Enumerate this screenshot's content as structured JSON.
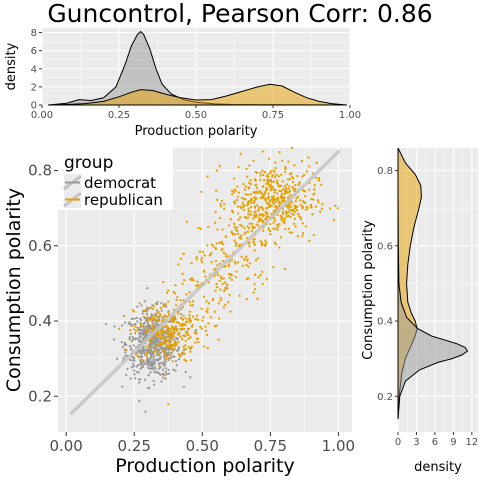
{
  "title": "Guncontrol, Pearson Corr: 0.86",
  "colors": {
    "democrat": "#999999",
    "republican": "#E69F00",
    "panel_bg": "#EBEBEB",
    "grid": "#FFFFFF"
  },
  "chart_data": [
    {
      "type": "area",
      "panel": "top-marginal-density",
      "xlabel": "Production polarity",
      "ylabel": "density",
      "xlim": [
        0,
        1
      ],
      "ylim": [
        0,
        8.5
      ],
      "x_ticks": [
        "0.00",
        "0.25",
        "0.50",
        "0.75",
        "1.00"
      ],
      "y_ticks": [
        "0",
        "2",
        "4",
        "6",
        "8"
      ],
      "series": [
        {
          "name": "democrat",
          "x": [
            0.02,
            0.08,
            0.12,
            0.16,
            0.2,
            0.24,
            0.27,
            0.29,
            0.31,
            0.32,
            0.33,
            0.35,
            0.37,
            0.39,
            0.42,
            0.46,
            0.5,
            0.56,
            0.62,
            0.7,
            0.8,
            0.9,
            0.99
          ],
          "y": [
            0.0,
            0.2,
            0.6,
            0.5,
            0.8,
            2.0,
            4.5,
            6.5,
            7.8,
            8.1,
            7.8,
            6.2,
            4.0,
            2.3,
            1.2,
            0.6,
            0.3,
            0.12,
            0.06,
            0.03,
            0.02,
            0.01,
            0.0
          ]
        },
        {
          "name": "republican",
          "x": [
            0.02,
            0.08,
            0.14,
            0.2,
            0.25,
            0.29,
            0.32,
            0.36,
            0.4,
            0.45,
            0.5,
            0.55,
            0.6,
            0.65,
            0.7,
            0.74,
            0.78,
            0.82,
            0.86,
            0.9,
            0.94,
            0.97,
            0.99
          ],
          "y": [
            0.0,
            0.05,
            0.15,
            0.4,
            0.9,
            1.4,
            1.7,
            1.6,
            1.2,
            0.8,
            0.55,
            0.6,
            1.0,
            1.5,
            2.0,
            2.3,
            2.1,
            1.4,
            0.8,
            0.4,
            0.15,
            0.05,
            0.0
          ]
        }
      ]
    },
    {
      "type": "scatter",
      "panel": "main-scatter",
      "xlabel": "Production polarity",
      "ylabel": "Consumption polarity",
      "xlim": [
        -0.03,
        1.05
      ],
      "ylim": [
        0.105,
        0.86
      ],
      "x_ticks": [
        "0.00",
        "0.25",
        "0.50",
        "0.75",
        "1.00"
      ],
      "y_ticks": [
        "0.2",
        "0.4",
        "0.6",
        "0.8"
      ],
      "legend": {
        "title": "group",
        "placement": "top-left",
        "entries": [
          "democrat",
          "republican"
        ]
      },
      "fit_line": {
        "x": [
          0.02,
          1.0
        ],
        "y": [
          0.155,
          0.85
        ]
      },
      "series": [
        {
          "name": "democrat",
          "center": [
            0.32,
            0.34
          ],
          "spread": [
            0.05,
            0.045
          ],
          "count": 650
        },
        {
          "name": "republican",
          "cluster_high": {
            "center": [
              0.76,
              0.72
            ],
            "spread": [
              0.08,
              0.05
            ],
            "count": 450
          },
          "cluster_low": {
            "center": [
              0.37,
              0.37
            ],
            "spread": [
              0.06,
              0.04
            ],
            "count": 250
          },
          "bridge": {
            "from": [
              0.42,
              0.4
            ],
            "to": [
              0.72,
              0.68
            ],
            "count": 300
          }
        }
      ]
    },
    {
      "type": "area",
      "panel": "right-marginal-density",
      "xlabel": "density",
      "ylabel": "Consumption polarity",
      "xlim": [
        0,
        13
      ],
      "ylim": [
        0.105,
        0.86
      ],
      "x_ticks": [
        "0",
        "3",
        "6",
        "9",
        "12"
      ],
      "y_ticks": [
        "0.2",
        "0.4",
        "0.6",
        "0.8"
      ],
      "series": [
        {
          "name": "democrat",
          "y": [
            0.14,
            0.2,
            0.24,
            0.27,
            0.29,
            0.3,
            0.31,
            0.32,
            0.33,
            0.34,
            0.35,
            0.36,
            0.38,
            0.41,
            0.45,
            0.5,
            0.6,
            0.7,
            0.8,
            0.86
          ],
          "density": [
            0.0,
            0.3,
            1.2,
            3.5,
            6.5,
            8.8,
            10.4,
            11.3,
            10.9,
            9.5,
            7.5,
            5.5,
            3.2,
            1.4,
            0.5,
            0.15,
            0.05,
            0.02,
            0.0,
            0.0
          ]
        },
        {
          "name": "republican",
          "y": [
            0.14,
            0.2,
            0.26,
            0.3,
            0.33,
            0.36,
            0.38,
            0.4,
            0.42,
            0.45,
            0.5,
            0.55,
            0.6,
            0.65,
            0.7,
            0.73,
            0.76,
            0.79,
            0.82,
            0.86
          ],
          "density": [
            0.0,
            0.2,
            0.6,
            1.2,
            2.0,
            2.8,
            3.1,
            2.8,
            2.2,
            1.6,
            1.4,
            1.6,
            2.0,
            2.6,
            3.4,
            3.8,
            3.7,
            2.8,
            1.2,
            0.0
          ]
        }
      ]
    }
  ]
}
